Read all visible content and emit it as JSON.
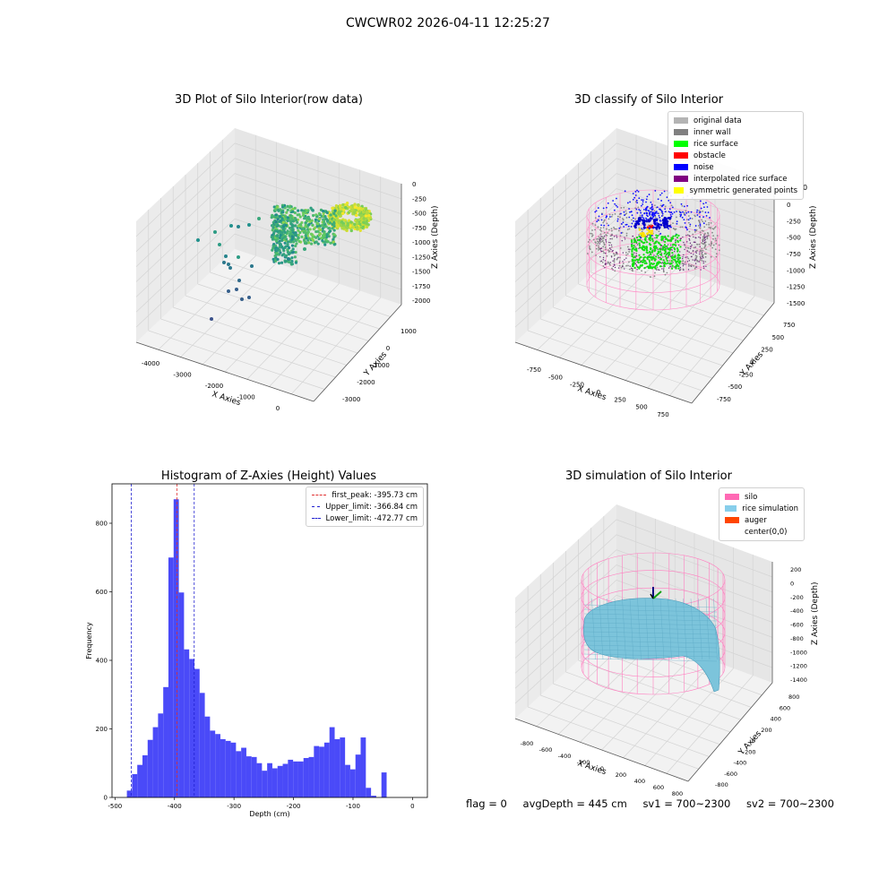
{
  "suptitle": "CWCWR02 2026-04-11 12:25:27",
  "footer": {
    "flag": "flag = 0",
    "avg_depth": "avgDepth = 445 cm",
    "sv1": "sv1 = 700~2300",
    "sv2": "sv2 = 700~2300"
  },
  "chart_data": [
    {
      "type": "scatter",
      "title": "3D Plot of Silo Interior(row data)",
      "xlabel": "X Axies",
      "ylabel": "Y Axies",
      "zlabel": "Z Axies (Depth)",
      "x_ticks": [
        "-4000",
        "-3000",
        "-2000",
        "-1000",
        "0"
      ],
      "y_ticks": [
        "1000",
        "0",
        "-1000",
        "-2000",
        "-3000"
      ],
      "z_ticks": [
        "0",
        "-250",
        "-500",
        "-750",
        "-1000",
        "-1250",
        "-1500",
        "-1750",
        "-2000"
      ],
      "xlim": [
        -4300,
        300
      ],
      "ylim": [
        -3300,
        1300
      ],
      "zlim": [
        -2100,
        50
      ],
      "colormap": "viridis"
    },
    {
      "type": "scatter",
      "title": "3D classify of Silo Interior",
      "xlabel": "X Axies",
      "ylabel": "Y Axies",
      "zlabel": "Z Axies (Depth)",
      "x_ticks": [
        "-750",
        "-500",
        "-250",
        "0",
        "250",
        "500",
        "750"
      ],
      "y_ticks": [
        "750",
        "500",
        "250",
        "0",
        "-250",
        "-500",
        "-750"
      ],
      "z_ticks": [
        "0",
        "-250",
        "-500",
        "-750",
        "-1000",
        "-1250",
        "-1500"
      ],
      "legend": [
        {
          "label": "original data",
          "color": "#b4b4b4"
        },
        {
          "label": "inner wall",
          "color": "#808080"
        },
        {
          "label": "rice surface",
          "color": "#00ff00"
        },
        {
          "label": "obstacle",
          "color": "#ff0000"
        },
        {
          "label": "noise",
          "color": "#0000ff"
        },
        {
          "label": "interpolated rice surface",
          "color": "#800080"
        },
        {
          "label": "symmetric generated points",
          "color": "#ffff00"
        }
      ],
      "extra_tick": "0"
    },
    {
      "type": "bar",
      "title": "Histogram of Z-Axies (Height) Values",
      "xlabel": "Depth (cm)",
      "ylabel": "Frequency",
      "xlim": [
        -505,
        25
      ],
      "ylim": [
        0,
        915
      ],
      "x_ticks": [
        -500,
        -400,
        -300,
        -200,
        -100,
        0
      ],
      "y_ticks": [
        0,
        200,
        400,
        600,
        800
      ],
      "bin_width": 8.73,
      "bin_start": -480,
      "values": [
        20,
        68,
        95,
        123,
        168,
        205,
        245,
        322,
        700,
        870,
        598,
        432,
        404,
        375,
        305,
        236,
        195,
        185,
        170,
        165,
        160,
        135,
        145,
        120,
        118,
        100,
        78,
        100,
        85,
        92,
        98,
        110,
        105,
        105,
        115,
        118,
        150,
        148,
        160,
        205,
        170,
        175,
        95,
        82,
        125,
        175,
        28,
        5,
        0,
        73
      ],
      "bar_color": "#4a4af8",
      "lines": [
        {
          "label": "first_peak: -395.73 cm",
          "x": -395.73,
          "color": "#e03030"
        },
        {
          "label": "Upper_limit: -366.84 cm",
          "x": -366.84,
          "color": "#2020d0"
        },
        {
          "label": "Lower_limit: -472.77 cm",
          "x": -472.77,
          "color": "#2020d0"
        }
      ]
    },
    {
      "type": "area",
      "title": "3D simulation of Silo Interior",
      "xlabel": "X Axies",
      "ylabel": "Y Axies",
      "zlabel": "Z Axies (Depth)",
      "x_ticks": [
        "-800",
        "-600",
        "-400",
        "-200",
        "0",
        "200",
        "400",
        "600",
        "800"
      ],
      "y_ticks": [
        "800",
        "600",
        "400",
        "200",
        "0",
        "-200",
        "-400",
        "-600",
        "-800"
      ],
      "z_ticks": [
        "200",
        "0",
        "-200",
        "-400",
        "-600",
        "-800",
        "-1000",
        "-1200",
        "-1400"
      ],
      "legend": [
        {
          "label": "silo",
          "color": "#ff69b4"
        },
        {
          "label": "rice simulation",
          "color": "#87ceeb"
        },
        {
          "label": "auger",
          "color": "#ff4500"
        },
        {
          "label": "center(0,0)",
          "color": ""
        }
      ]
    }
  ]
}
